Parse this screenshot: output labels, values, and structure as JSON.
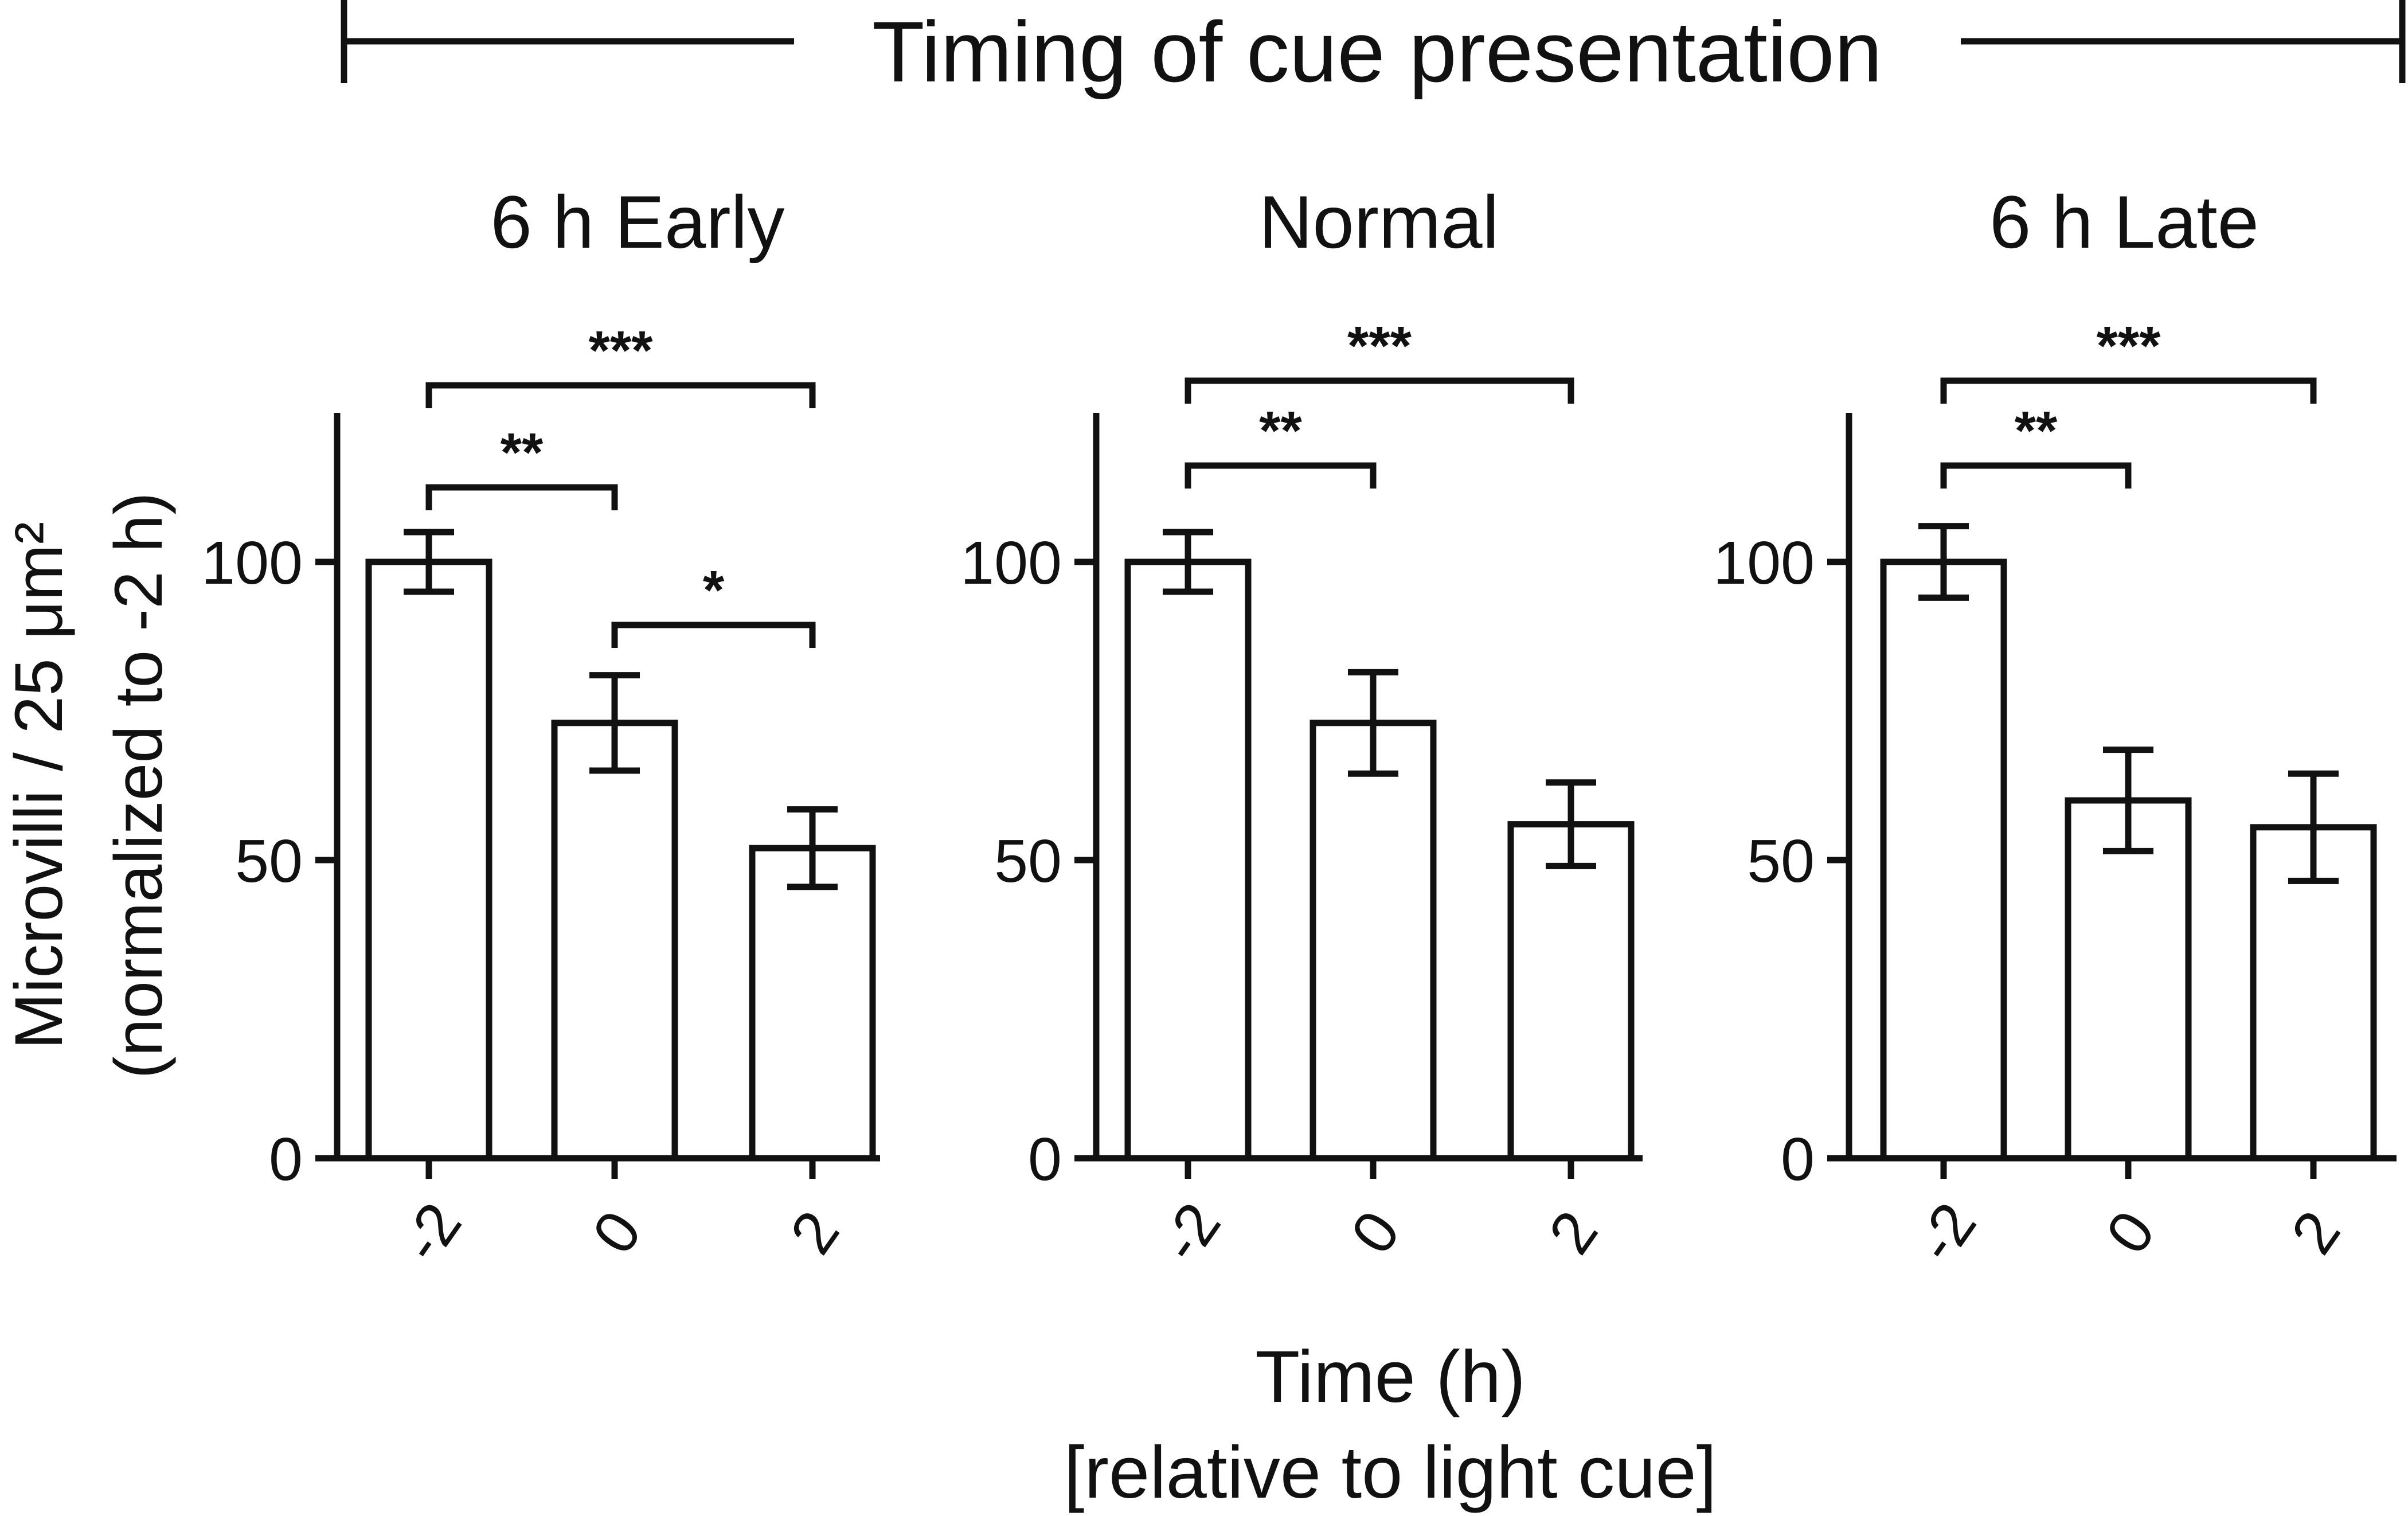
{
  "banner": {
    "title": "Timing of cue presentation"
  },
  "chart_data": {
    "type": "bar",
    "ylabel": "Microvilli / 25 μm²",
    "ylabel_line2": "(normalized to -2 h)",
    "xlabel": "Time (h)",
    "xlabel_line2": "[relative to light cue]",
    "ylim": [
      0,
      125
    ],
    "yticks": [
      0,
      50,
      100
    ],
    "categories": [
      "-2",
      "0",
      "2"
    ],
    "panels": [
      {
        "title": "6 h Early",
        "values": [
          100,
          73,
          52
        ],
        "errors": [
          5,
          8,
          6.5
        ],
        "significance": [
          {
            "from": "-2",
            "to": "0",
            "label": "**"
          },
          {
            "from": "0",
            "to": "2",
            "label": "*"
          },
          {
            "from": "-2",
            "to": "2",
            "label": "***"
          }
        ]
      },
      {
        "title": "Normal",
        "values": [
          100,
          73,
          56
        ],
        "errors": [
          5,
          8.5,
          7
        ],
        "significance": [
          {
            "from": "-2",
            "to": "0",
            "label": "**"
          },
          {
            "from": "-2",
            "to": "2",
            "label": "***"
          }
        ]
      },
      {
        "title": "6 h Late",
        "values": [
          100,
          60,
          55.5
        ],
        "errors": [
          6,
          8.5,
          9
        ],
        "significance": [
          {
            "from": "-2",
            "to": "0",
            "label": "**"
          },
          {
            "from": "-2",
            "to": "2",
            "label": "***"
          }
        ]
      }
    ]
  }
}
